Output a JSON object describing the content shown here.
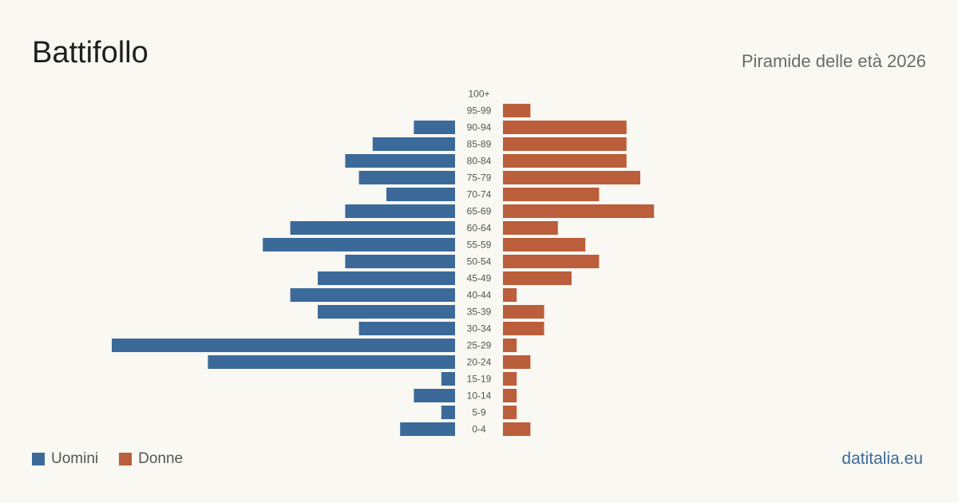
{
  "header": {
    "title": "Battifollo",
    "subtitle": "Piramide delle età 2026"
  },
  "legend": {
    "men_label": "Uomini",
    "women_label": "Donne"
  },
  "brand": "datitalia.eu",
  "colors": {
    "men": "#3b6a9a",
    "women": "#bb5e3b",
    "background": "#faf8f3",
    "brand": "#3b6a9a"
  },
  "chart_data": {
    "type": "bar",
    "orientation": "horizontal-pyramid",
    "categories": [
      "100+",
      "95-99",
      "90-94",
      "85-89",
      "80-84",
      "75-79",
      "70-74",
      "65-69",
      "60-64",
      "55-59",
      "50-54",
      "45-49",
      "40-44",
      "35-39",
      "30-34",
      "25-29",
      "20-24",
      "15-19",
      "10-14",
      "5-9",
      "0-4"
    ],
    "series": [
      {
        "name": "Uomini",
        "values": [
          0,
          0,
          3,
          6,
          8,
          7,
          5,
          8,
          12,
          14,
          8,
          10,
          12,
          10,
          7,
          25,
          18,
          1,
          3,
          1,
          4
        ]
      },
      {
        "name": "Donne",
        "values": [
          0,
          2,
          9,
          9,
          9,
          10,
          7,
          11,
          4,
          6,
          7,
          5,
          1,
          3,
          3,
          1,
          2,
          1,
          1,
          1,
          2
        ]
      }
    ],
    "xlabel": "",
    "ylabel": "",
    "grid": false,
    "legend_position": "bottom-left"
  }
}
